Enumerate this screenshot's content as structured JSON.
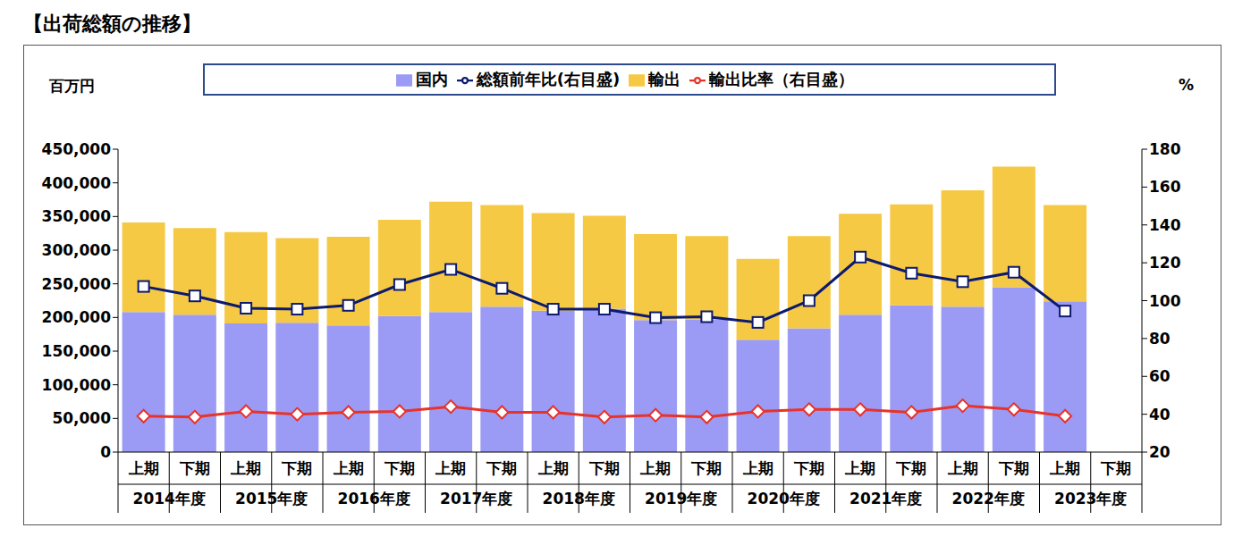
{
  "chart_data": {
    "type": "bar",
    "title": "【出荷総額の推移】",
    "ylabel": "百万円",
    "y2label": "%",
    "categories": [
      "上期",
      "下期",
      "上期",
      "下期",
      "上期",
      "下期",
      "上期",
      "下期",
      "上期",
      "下期",
      "上期",
      "下期",
      "上期",
      "下期",
      "上期",
      "下期",
      "上期",
      "下期",
      "上期",
      "下期"
    ],
    "category_groups": [
      "2014年度",
      "2015年度",
      "2016年度",
      "2017年度",
      "2018年度",
      "2019年度",
      "2020年度",
      "2021年度",
      "2022年度",
      "2023年度"
    ],
    "stacked": true,
    "legend": "top",
    "grid": false,
    "series": [
      {
        "name": "国内",
        "type": "bar",
        "color": "#9b9bf5",
        "values": [
          208000,
          204000,
          191000,
          192000,
          188000,
          202000,
          208000,
          216000,
          210000,
          213000,
          196000,
          197000,
          167000,
          184000,
          204000,
          218000,
          216000,
          245000,
          224000,
          null
        ]
      },
      {
        "name": "輸出",
        "type": "bar",
        "color": "#f6c945",
        "values": [
          133000,
          129000,
          136000,
          126000,
          132000,
          143000,
          164000,
          151000,
          145000,
          138000,
          128000,
          124000,
          120000,
          137000,
          150000,
          150000,
          173000,
          179000,
          143000,
          null
        ]
      },
      {
        "name": "総額前年比(右目盛)",
        "type": "line",
        "axis": "y2",
        "color": "#0d1a6e",
        "marker": "square",
        "values": [
          107.5,
          102.5,
          96,
          95.5,
          97.5,
          108.5,
          116.5,
          106.5,
          95.5,
          95.5,
          91,
          91.5,
          88.5,
          100,
          123,
          114.5,
          110,
          115,
          94.5,
          null
        ]
      },
      {
        "name": "輸出比率（右目盛）",
        "type": "line",
        "axis": "y2",
        "color": "#e8322a",
        "marker": "diamond",
        "values": [
          39,
          38.5,
          41.5,
          40,
          41,
          41.5,
          44,
          41,
          41,
          38.5,
          39.5,
          38.5,
          41.5,
          42.5,
          42.5,
          41,
          44.5,
          42.5,
          39,
          null
        ]
      }
    ],
    "ylim": [
      0,
      450000
    ],
    "yticks": [
      0,
      {
        "value": 50000,
        "label": "50,000"
      },
      {
        "value": 100000,
        "label": "100,000"
      },
      {
        "value": 150000,
        "label": "150,000"
      },
      {
        "value": 200000,
        "label": "200,000"
      },
      {
        "value": 250000,
        "label": "250,000"
      },
      {
        "value": 300000,
        "label": "300,000"
      },
      {
        "value": 350000,
        "label": "350,000"
      },
      {
        "value": 400000,
        "label": "400,000"
      },
      {
        "value": 450000,
        "label": "450,000"
      }
    ],
    "y2lim": [
      20,
      180
    ],
    "y2ticks": [
      20,
      40,
      60,
      80,
      100,
      120,
      140,
      160,
      180
    ]
  }
}
